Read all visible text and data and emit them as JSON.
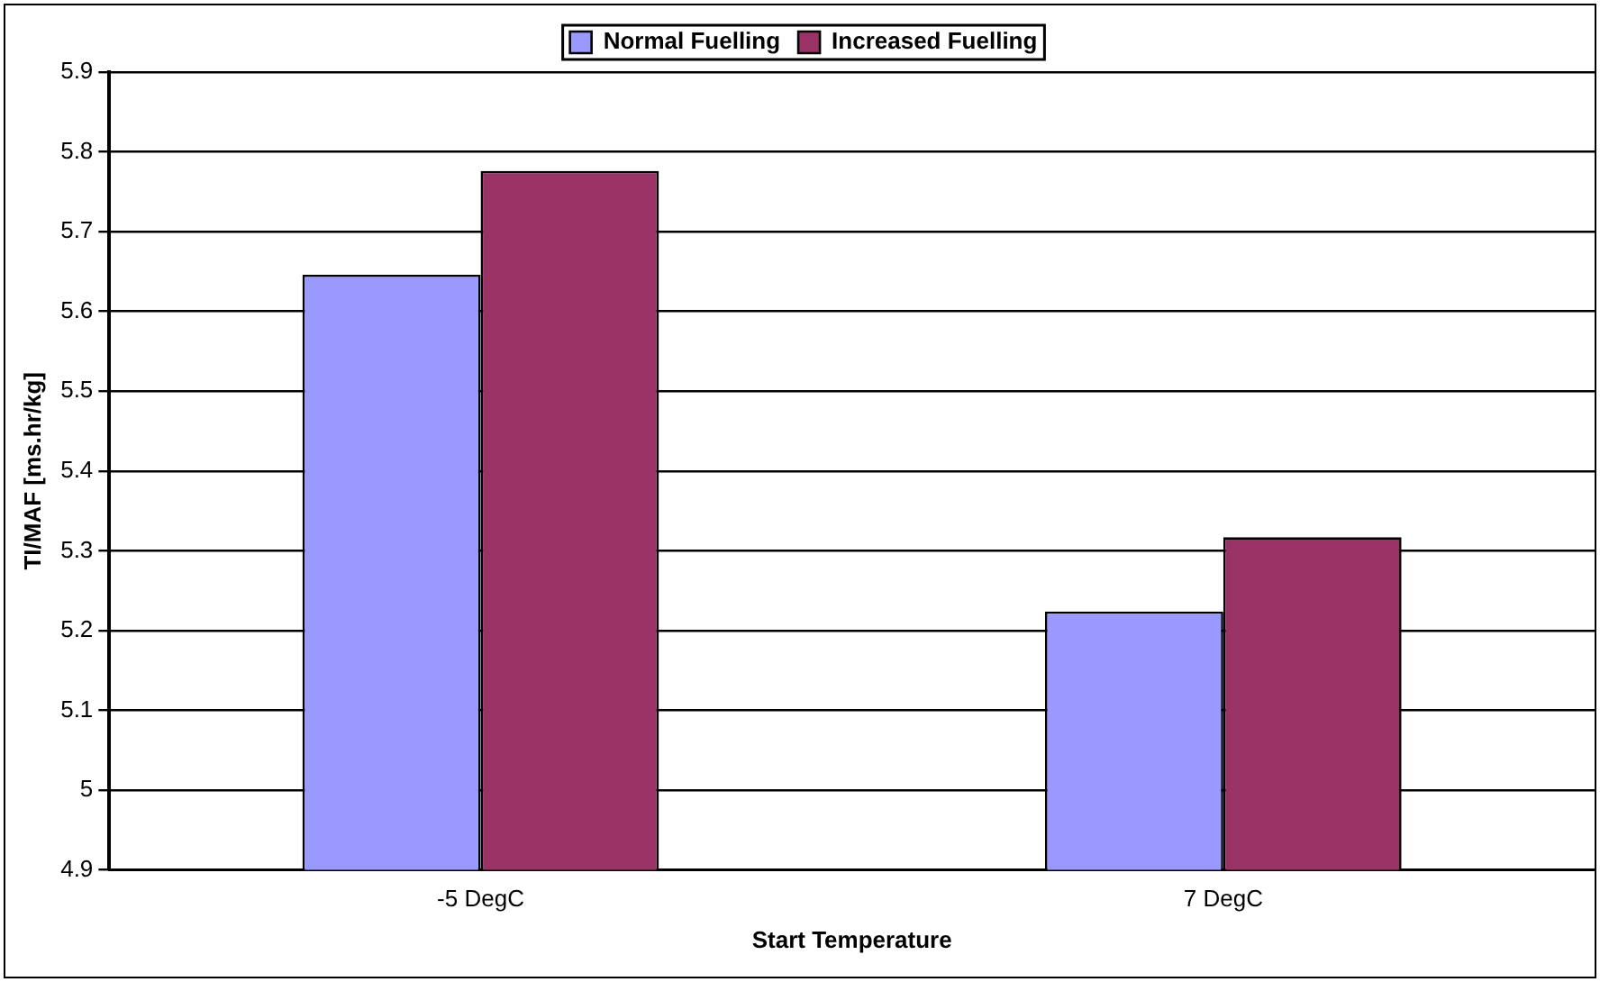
{
  "chart_data": {
    "type": "bar",
    "xlabel": "Start Temperature",
    "ylabel": "TI/MAF [ms.hr/kg]",
    "categories": [
      "-5 DegC",
      "7 DegC"
    ],
    "series": [
      {
        "name": "Normal Fuelling",
        "color": "#9999ff",
        "values": [
          5.646,
          5.224
        ]
      },
      {
        "name": "Increased Fuelling",
        "color": "#993366",
        "values": [
          5.776,
          5.317
        ]
      }
    ],
    "ylim": [
      4.9,
      5.9
    ],
    "yticks": [
      4.9,
      5,
      5.1,
      5.2,
      5.3,
      5.4,
      5.5,
      5.6,
      5.7,
      5.8,
      5.9
    ],
    "grid": "y",
    "legend": "top"
  }
}
